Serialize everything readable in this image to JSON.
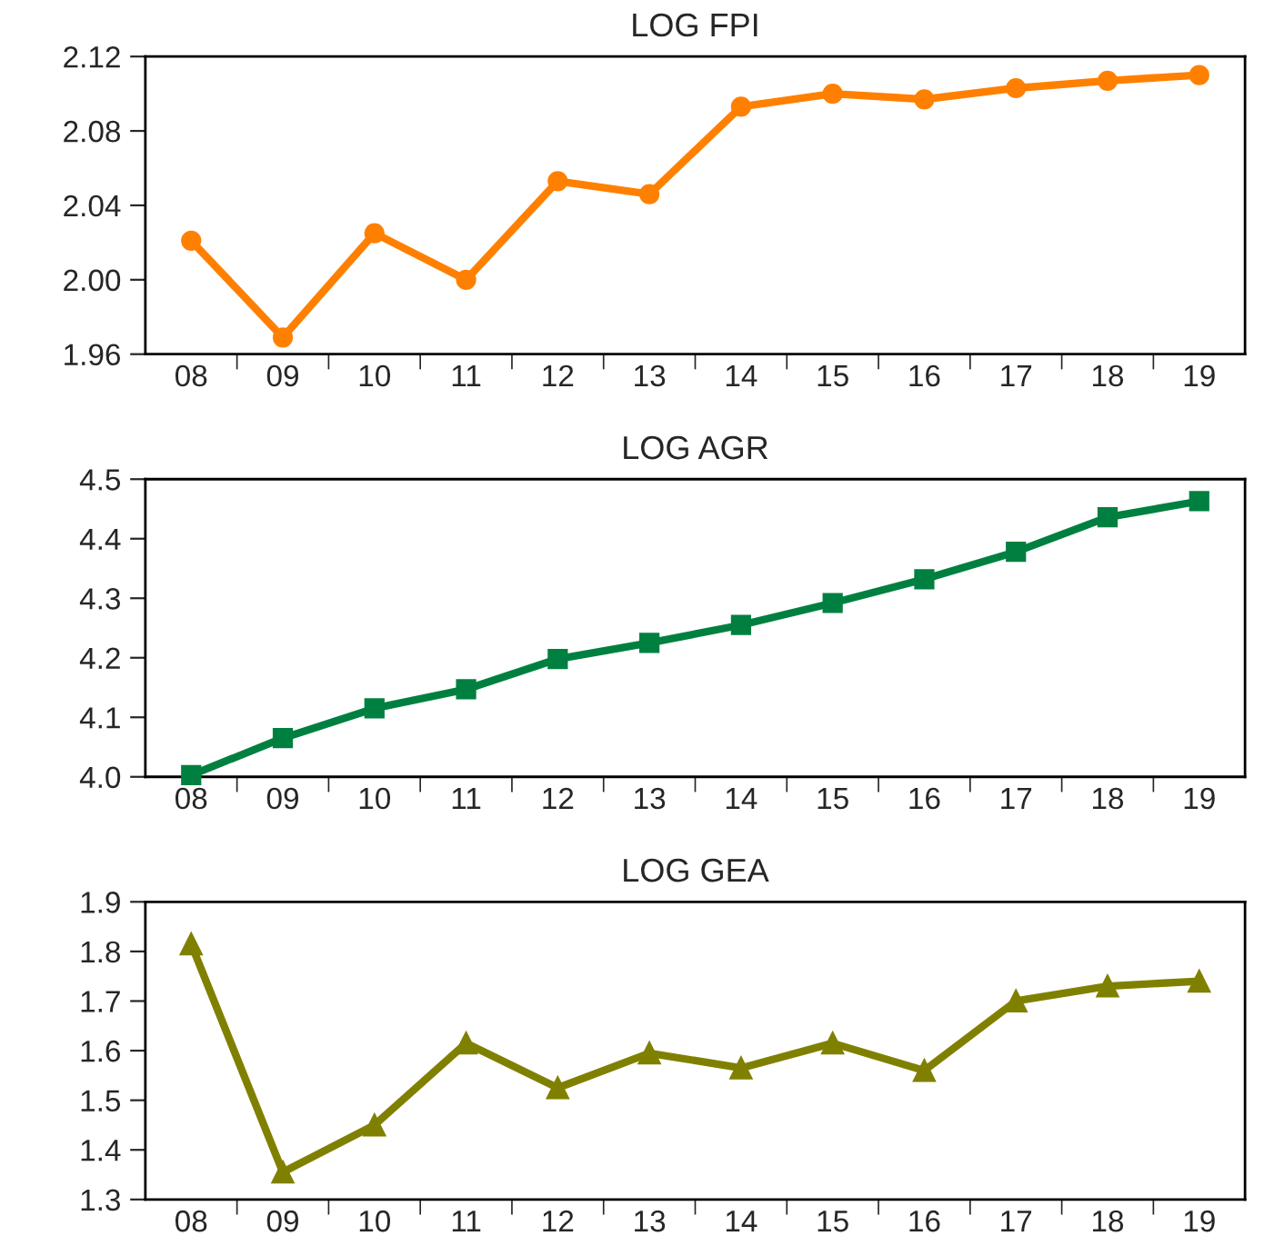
{
  "chart_data": [
    {
      "type": "line",
      "title": "LOG FPI",
      "categories": [
        "08",
        "09",
        "10",
        "11",
        "12",
        "13",
        "14",
        "15",
        "16",
        "17",
        "18",
        "19"
      ],
      "ylim": [
        1.96,
        2.12
      ],
      "yticks": [
        {
          "value": 1.96,
          "label": "1.96"
        },
        {
          "value": 2.0,
          "label": "2.00"
        },
        {
          "value": 2.04,
          "label": "2.04"
        },
        {
          "value": 2.08,
          "label": "2.08"
        },
        {
          "value": 2.12,
          "label": "2.12"
        }
      ],
      "marker": "circle",
      "line_style": "solid",
      "grid": false,
      "series": [
        {
          "color": "#ff8000",
          "values": [
            2.021,
            1.969,
            2.025,
            2.0,
            2.053,
            2.046,
            2.093,
            2.1,
            2.097,
            2.103,
            2.107,
            2.11
          ]
        }
      ]
    },
    {
      "type": "line",
      "title": "LOG AGR",
      "categories": [
        "08",
        "09",
        "10",
        "11",
        "12",
        "13",
        "14",
        "15",
        "16",
        "17",
        "18",
        "19"
      ],
      "ylim": [
        4.0,
        4.5
      ],
      "yticks": [
        {
          "value": 4.0,
          "label": "4.0"
        },
        {
          "value": 4.1,
          "label": "4.1"
        },
        {
          "value": 4.2,
          "label": "4.2"
        },
        {
          "value": 4.3,
          "label": "4.3"
        },
        {
          "value": 4.4,
          "label": "4.4"
        },
        {
          "value": 4.5,
          "label": "4.5"
        }
      ],
      "marker": "square",
      "line_style": "solid",
      "grid": false,
      "series": [
        {
          "color": "#008040",
          "values": [
            4.003,
            4.065,
            4.115,
            4.147,
            4.198,
            4.225,
            4.255,
            4.292,
            4.332,
            4.378,
            4.436,
            4.463
          ]
        }
      ]
    },
    {
      "type": "line",
      "title": "LOG GEA",
      "categories": [
        "08",
        "09",
        "10",
        "11",
        "12",
        "13",
        "14",
        "15",
        "16",
        "17",
        "18",
        "19"
      ],
      "ylim": [
        1.3,
        1.9
      ],
      "yticks": [
        {
          "value": 1.3,
          "label": "1.3"
        },
        {
          "value": 1.4,
          "label": "1.4"
        },
        {
          "value": 1.5,
          "label": "1.5"
        },
        {
          "value": 1.6,
          "label": "1.6"
        },
        {
          "value": 1.7,
          "label": "1.7"
        },
        {
          "value": 1.8,
          "label": "1.8"
        },
        {
          "value": 1.9,
          "label": "1.9"
        }
      ],
      "marker": "triangle",
      "line_style": "solid",
      "grid": false,
      "series": [
        {
          "color": "#808000",
          "values": [
            1.815,
            1.355,
            1.45,
            1.615,
            1.525,
            1.595,
            1.565,
            1.615,
            1.56,
            1.7,
            1.73,
            1.74
          ]
        }
      ]
    }
  ]
}
